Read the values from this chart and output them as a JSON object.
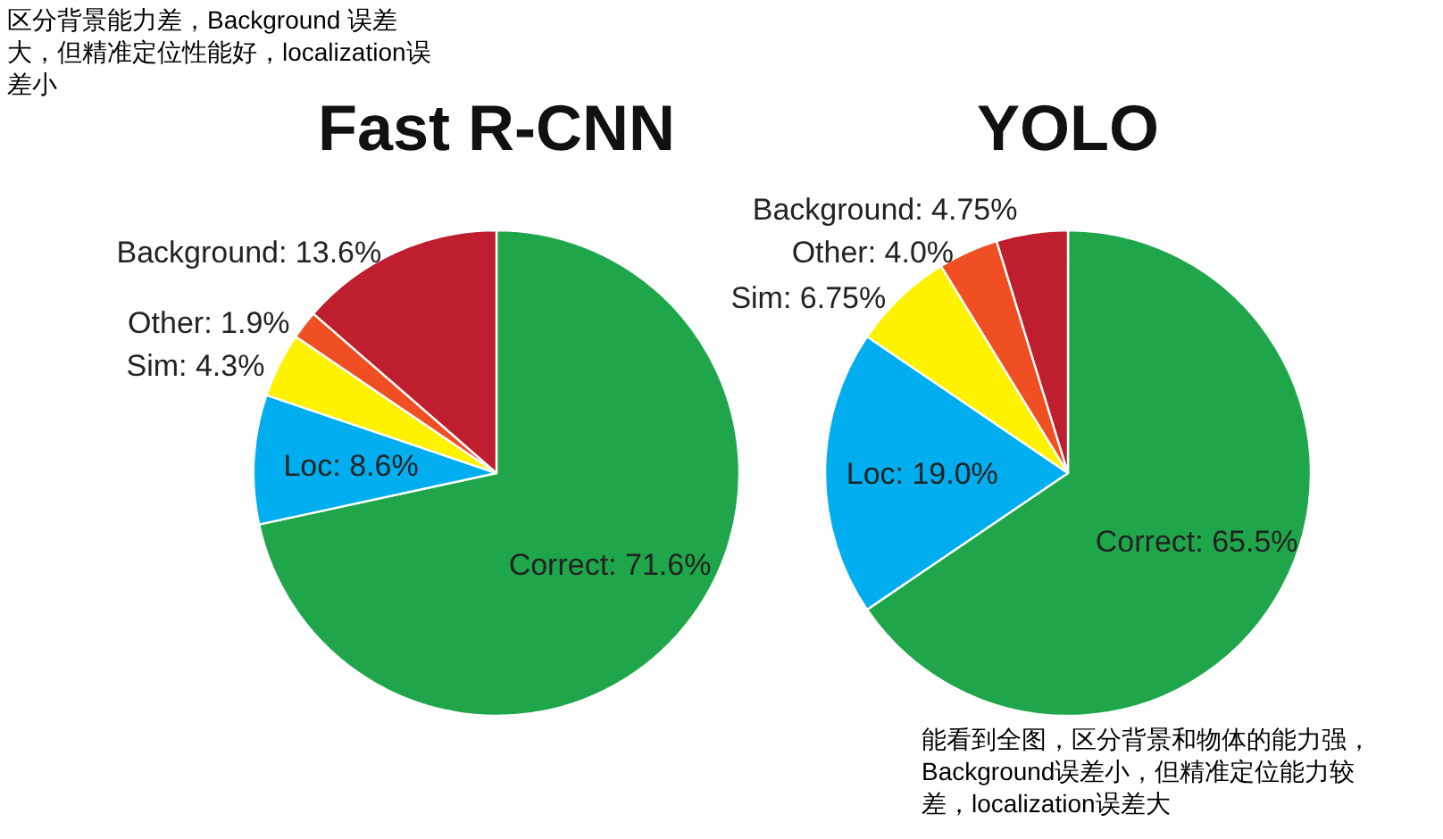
{
  "chart_data": [
    {
      "type": "pie",
      "title": "Fast R-CNN",
      "categories": [
        "Correct",
        "Loc",
        "Sim",
        "Other",
        "Background"
      ],
      "values": [
        71.6,
        8.6,
        4.3,
        1.9,
        13.6
      ],
      "value_labels": [
        "71.6%",
        "8.6%",
        "4.3%",
        "1.9%",
        "13.6%"
      ],
      "colors": [
        "#1fa64a",
        "#00aeef",
        "#fff200",
        "#f04e23",
        "#be1e2d"
      ],
      "annotations": [
        "区分背景能力差，Background 误差大，但精准定位性能好，localization误差小"
      ]
    },
    {
      "type": "pie",
      "title": "YOLO",
      "categories": [
        "Correct",
        "Loc",
        "Sim",
        "Other",
        "Background"
      ],
      "values": [
        65.5,
        19.0,
        6.75,
        4.0,
        4.75
      ],
      "value_labels": [
        "65.5%",
        "19.0%",
        "6.75%",
        "4.0%",
        "4.75%"
      ],
      "colors": [
        "#1fa64a",
        "#00aeef",
        "#fff200",
        "#f04e23",
        "#be1e2d"
      ],
      "annotations": [
        "能看到全图，区分背景和物体的能力强，Background误差小，但精准定位能力较差，localization误差大"
      ]
    }
  ]
}
